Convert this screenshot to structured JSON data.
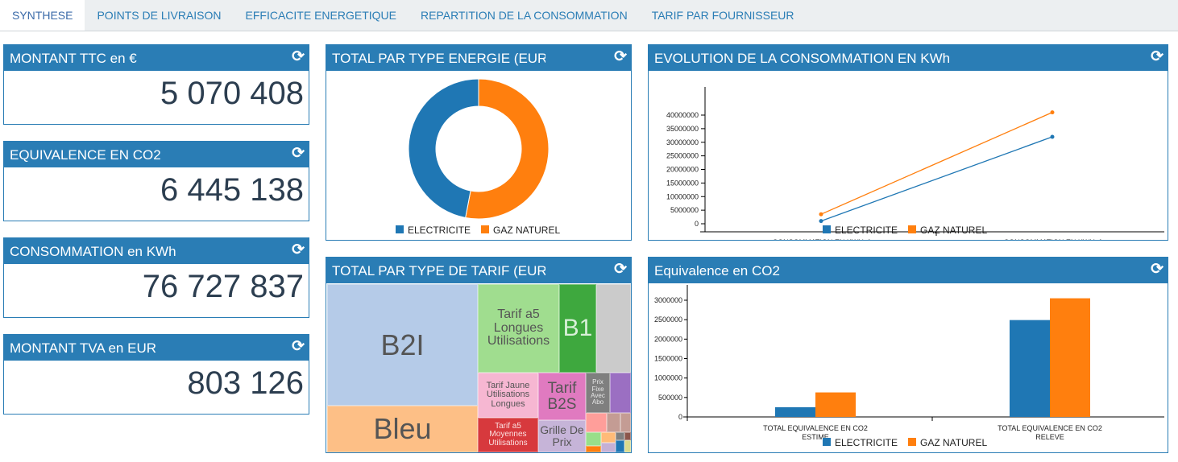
{
  "tabs": [
    {
      "label": "SYNTHESE",
      "active": true
    },
    {
      "label": "POINTS DE LIVRAISON"
    },
    {
      "label": "EFFICACITE ENERGETIQUE"
    },
    {
      "label": "REPARTITION DE LA CONSOMMATION"
    },
    {
      "label": "TARIF PAR FOURNISSEUR"
    }
  ],
  "colors": {
    "header": "#2a7db5",
    "electricite": "#1f77b4",
    "gaz": "#ff7f0e"
  },
  "kpis": [
    {
      "title": "MONTANT TTC en €",
      "value": "5 070 408"
    },
    {
      "title": "EQUIVALENCE EN CO2",
      "value": "6 445 138"
    },
    {
      "title": "CONSOMMATION en KWh",
      "value": "76 727 837"
    },
    {
      "title": "MONTANT TVA en EUR",
      "value": "803 126"
    }
  ],
  "refresh_icon": "refresh-icon",
  "legend": {
    "electricite": "ELECTRICITE",
    "gaz": "GAZ NATUREL"
  },
  "chart_data": [
    {
      "type": "pie",
      "title": "TOTAL PAR TYPE ENERGIE (EUR",
      "donut": true,
      "categories": [
        "ELECTRICITE",
        "GAZ NATUREL"
      ],
      "values": [
        0.47,
        0.53
      ],
      "legend": "bottom"
    },
    {
      "type": "line",
      "title": "EVOLUTION DE LA CONSOMMATION EN KWh",
      "categories": [
        [
          "CONSOMMATION EN KWHef",
          "avril 2011",
          "2011"
        ],
        [
          "CONSOMMATION EN KWHef",
          "mai 2011",
          "2011"
        ]
      ],
      "series": [
        {
          "name": "ELECTRICITE",
          "values": [
            1000000,
            32000000
          ]
        },
        {
          "name": "GAZ NATUREL",
          "values": [
            3500000,
            41000000
          ]
        }
      ],
      "yticks": [
        "0",
        "5000000",
        "10000000",
        "15000000",
        "20000000",
        "25000000",
        "30000000",
        "35000000",
        "40000000"
      ],
      "ylim": [
        0,
        40000000
      ],
      "legend": "bottom"
    },
    {
      "type": "bar",
      "title": "Equivalence en CO2",
      "categories": [
        [
          "TOTAL EQUIVALENCE EN CO2",
          "ESTIME"
        ],
        [
          "TOTAL EQUIVALENCE EN CO2",
          "RELEVE"
        ]
      ],
      "series": [
        {
          "name": "ELECTRICITE",
          "values": [
            250000,
            2490000
          ]
        },
        {
          "name": "GAZ NATUREL",
          "values": [
            630000,
            3050000
          ]
        }
      ],
      "yticks": [
        "0",
        "500000",
        "1000000",
        "1500000",
        "2000000",
        "2500000",
        "3000000"
      ],
      "ylim": [
        0,
        3000000
      ],
      "legend": "bottom"
    }
  ],
  "treemap": {
    "title": "TOTAL PAR TYPE DE TARIF (EUR",
    "cells": [
      {
        "label": "B2I",
        "color": "#b5cbe8"
      },
      {
        "label": "Bleu",
        "color": "#fdbf86"
      },
      {
        "label": "Tarif a5 Longues Utilisations",
        "color": "#a0dd8f"
      },
      {
        "label": "B1",
        "color": "#3ea83e",
        "text": "#d8f0d8"
      },
      {
        "label": "",
        "color": "#cbcbcb"
      },
      {
        "label": "Tarif Jaune Utilisations Longues",
        "color": "#f6b7d2"
      },
      {
        "label": "Tarif B2S",
        "color": "#e07ac0"
      },
      {
        "label": "Tarif a5 Moyennes Utilisations",
        "color": "#d7393d",
        "text": "#fbe0e0"
      },
      {
        "label": "Grille De Prix",
        "color": "#c6b4d8"
      },
      {
        "label": "Prix Fixe Avec Abo",
        "color": "#7f7f7f",
        "text": "#e8e8e8"
      },
      {
        "label": "",
        "color": "#9b6fc2"
      },
      {
        "label": "",
        "color": "#ff9e9a"
      },
      {
        "label": "",
        "color": "#c49c94"
      },
      {
        "label": "",
        "color": "#c49c94"
      },
      {
        "label": "",
        "color": "#98df8a"
      },
      {
        "label": "",
        "color": "#ffbb78"
      },
      {
        "label": "",
        "color": "#7f7f7f"
      },
      {
        "label": "",
        "color": "#8c564b"
      },
      {
        "label": "",
        "color": "#c5b0d5"
      },
      {
        "label": "",
        "color": "#1f77b4"
      },
      {
        "label": "",
        "color": "#ff7f0e"
      },
      {
        "label": "",
        "color": "#dbdb8d"
      }
    ]
  }
}
